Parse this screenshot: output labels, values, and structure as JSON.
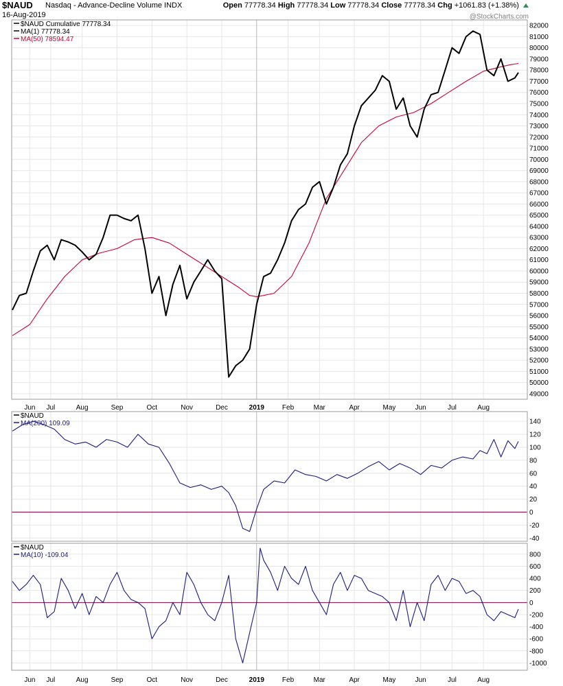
{
  "header": {
    "symbol": "$NAUD",
    "subtitle": "Nasdaq - Advance-Decline Volume INDX",
    "date": "16-Aug-2019",
    "open_label": "Open",
    "open": "77778.34",
    "high_label": "High",
    "high": "77778.34",
    "low_label": "Low",
    "low": "77778.34",
    "close_label": "Close",
    "close": "77778.34",
    "chg_label": "Chg",
    "chg": "+1061.83 (+1.38%)",
    "chg_icon": "up-triangle-icon",
    "watermark": "@StockCharts.com"
  },
  "colors": {
    "price": "#000000",
    "ma50": "#cc0033",
    "osc": "#1a1a80",
    "zero": "#800040",
    "grid": "#e6e6e6",
    "frame": "#999999"
  },
  "x_axis": {
    "month_labels": [
      "Jun",
      "Jul",
      "Aug",
      "Sep",
      "Oct",
      "Nov",
      "Dec",
      "2019",
      "Feb",
      "Mar",
      "Apr",
      "May",
      "Jun",
      "Jul",
      "Aug"
    ],
    "month_t": [
      0.05,
      0.11,
      0.2,
      0.3,
      0.4,
      0.5,
      0.6,
      0.7,
      0.79,
      0.88,
      0.98,
      1.08,
      1.17,
      1.26,
      1.35
    ]
  },
  "chart_data": [
    {
      "type": "line",
      "panel": "price",
      "legend_items": [
        {
          "text": "$NAUD Cumulative 77778.34",
          "color": "#000000"
        },
        {
          "text": "MA(1) 77778.34",
          "color": "#000000"
        },
        {
          "text": "MA(50) 78594.47",
          "color": "#cc0033"
        }
      ],
      "ylim": [
        48500,
        82500
      ],
      "yticks": [
        49000,
        50000,
        51000,
        52000,
        53000,
        54000,
        55000,
        56000,
        57000,
        58000,
        59000,
        60000,
        61000,
        62000,
        63000,
        64000,
        65000,
        66000,
        67000,
        68000,
        69000,
        70000,
        71000,
        72000,
        73000,
        74000,
        75000,
        76000,
        77000,
        78000,
        79000,
        80000,
        81000,
        82000
      ],
      "x_unit": "years since 2018-05-21",
      "series": [
        {
          "name": "$NAUD Cumulative",
          "color": "#000000",
          "x": [
            0.0,
            0.02,
            0.04,
            0.06,
            0.08,
            0.1,
            0.12,
            0.14,
            0.16,
            0.18,
            0.2,
            0.22,
            0.24,
            0.26,
            0.28,
            0.3,
            0.32,
            0.34,
            0.36,
            0.38,
            0.4,
            0.42,
            0.44,
            0.46,
            0.48,
            0.5,
            0.52,
            0.54,
            0.56,
            0.58,
            0.6,
            0.62,
            0.64,
            0.66,
            0.68,
            0.7,
            0.72,
            0.74,
            0.76,
            0.78,
            0.8,
            0.82,
            0.84,
            0.86,
            0.88,
            0.9,
            0.92,
            0.94,
            0.96,
            0.98,
            1.0,
            1.02,
            1.04,
            1.06,
            1.08,
            1.1,
            1.12,
            1.14,
            1.16,
            1.18,
            1.2,
            1.22,
            1.24,
            1.26,
            1.28,
            1.3,
            1.32,
            1.34,
            1.36,
            1.38,
            1.4,
            1.42,
            1.44,
            1.45
          ],
          "values": [
            56500,
            57800,
            58000,
            60000,
            61800,
            62300,
            61000,
            62800,
            62600,
            62300,
            61700,
            61000,
            61500,
            63000,
            65000,
            65000,
            64700,
            64500,
            65000,
            62000,
            58000,
            59500,
            56000,
            58800,
            60500,
            57500,
            59000,
            60000,
            61000,
            60000,
            59300,
            50500,
            51500,
            52000,
            53000,
            57000,
            59500,
            59800,
            61000,
            62500,
            64500,
            65500,
            66000,
            67500,
            68000,
            66000,
            67500,
            69500,
            70500,
            73000,
            74800,
            75500,
            76200,
            77500,
            77000,
            74500,
            75500,
            73000,
            72000,
            74500,
            75800,
            76000,
            78000,
            80000,
            79500,
            81000,
            81500,
            81200,
            78000,
            77500,
            79000,
            77000,
            77300,
            77778.34
          ]
        },
        {
          "name": "MA(50)",
          "color": "#cc0033",
          "x": [
            0.0,
            0.05,
            0.1,
            0.15,
            0.2,
            0.25,
            0.3,
            0.35,
            0.4,
            0.45,
            0.5,
            0.55,
            0.6,
            0.65,
            0.68,
            0.7,
            0.72,
            0.75,
            0.8,
            0.85,
            0.9,
            0.95,
            1.0,
            1.05,
            1.1,
            1.15,
            1.2,
            1.25,
            1.3,
            1.35,
            1.4,
            1.43,
            1.45
          ],
          "values": [
            54200,
            55200,
            57500,
            59500,
            61000,
            61600,
            62000,
            62800,
            63000,
            62500,
            61500,
            60500,
            59500,
            58500,
            57800,
            57700,
            57800,
            58000,
            59500,
            62500,
            66500,
            69000,
            71500,
            73000,
            73800,
            74200,
            75000,
            76000,
            77000,
            77900,
            78300,
            78500,
            78594.47
          ]
        }
      ]
    },
    {
      "type": "line",
      "panel": "ma200",
      "legend_items": [
        {
          "text": "$NAUD",
          "color": "#000000"
        },
        {
          "text": "MA(200) 109.09",
          "color": "#1a1a80"
        }
      ],
      "ylim": [
        -45,
        155
      ],
      "yticks": [
        -40,
        -20,
        0,
        20,
        40,
        60,
        80,
        100,
        120,
        140
      ],
      "zero_line": 0,
      "x_unit": "years since 2018-05-21",
      "series": [
        {
          "name": "MA(200)",
          "color": "#1a1a80",
          "x": [
            0.0,
            0.03,
            0.06,
            0.09,
            0.12,
            0.15,
            0.18,
            0.21,
            0.24,
            0.27,
            0.3,
            0.33,
            0.36,
            0.39,
            0.42,
            0.45,
            0.48,
            0.51,
            0.54,
            0.57,
            0.6,
            0.62,
            0.64,
            0.66,
            0.68,
            0.7,
            0.72,
            0.75,
            0.78,
            0.81,
            0.84,
            0.87,
            0.9,
            0.93,
            0.96,
            0.99,
            1.02,
            1.05,
            1.08,
            1.11,
            1.14,
            1.17,
            1.2,
            1.23,
            1.26,
            1.29,
            1.32,
            1.34,
            1.36,
            1.38,
            1.4,
            1.42,
            1.44,
            1.45
          ],
          "values": [
            125,
            135,
            140,
            135,
            128,
            112,
            105,
            108,
            100,
            112,
            108,
            100,
            120,
            105,
            100,
            75,
            45,
            38,
            42,
            35,
            40,
            30,
            10,
            -25,
            -30,
            5,
            35,
            48,
            45,
            65,
            58,
            55,
            48,
            58,
            52,
            60,
            70,
            78,
            65,
            75,
            68,
            58,
            72,
            68,
            80,
            85,
            82,
            95,
            90,
            112,
            85,
            110,
            98,
            109.09
          ]
        }
      ]
    },
    {
      "type": "line",
      "panel": "ma10",
      "legend_items": [
        {
          "text": "$NAUD",
          "color": "#000000"
        },
        {
          "text": "MA(10) -109.04",
          "color": "#1a1a80"
        }
      ],
      "ylim": [
        -1120,
        980
      ],
      "yticks": [
        -1000,
        -800,
        -600,
        -400,
        -200,
        0,
        200,
        400,
        600,
        800
      ],
      "zero_line": 0,
      "x_unit": "years since 2018-05-21",
      "series": [
        {
          "name": "MA(10)",
          "color": "#1a1a80",
          "x": [
            0.0,
            0.02,
            0.04,
            0.06,
            0.08,
            0.1,
            0.12,
            0.14,
            0.16,
            0.18,
            0.2,
            0.22,
            0.24,
            0.26,
            0.28,
            0.3,
            0.32,
            0.34,
            0.36,
            0.38,
            0.4,
            0.42,
            0.44,
            0.46,
            0.48,
            0.5,
            0.52,
            0.54,
            0.56,
            0.58,
            0.6,
            0.62,
            0.64,
            0.66,
            0.68,
            0.7,
            0.71,
            0.72,
            0.74,
            0.76,
            0.78,
            0.8,
            0.82,
            0.84,
            0.86,
            0.88,
            0.9,
            0.92,
            0.94,
            0.96,
            0.98,
            1.0,
            1.02,
            1.04,
            1.06,
            1.08,
            1.1,
            1.12,
            1.14,
            1.16,
            1.18,
            1.2,
            1.22,
            1.24,
            1.26,
            1.28,
            1.3,
            1.32,
            1.34,
            1.36,
            1.38,
            1.4,
            1.42,
            1.44,
            1.45
          ],
          "values": [
            350,
            200,
            300,
            450,
            300,
            -250,
            -150,
            400,
            200,
            -100,
            150,
            -200,
            100,
            0,
            300,
            500,
            200,
            50,
            0,
            -100,
            -600,
            -400,
            -300,
            0,
            -200,
            500,
            300,
            0,
            -200,
            -300,
            0,
            450,
            -600,
            -1000,
            -500,
            0,
            900,
            700,
            500,
            200,
            600,
            400,
            300,
            600,
            200,
            0,
            -200,
            300,
            500,
            200,
            450,
            400,
            200,
            150,
            100,
            0,
            -300,
            200,
            -400,
            0,
            -300,
            300,
            450,
            200,
            400,
            350,
            150,
            200,
            100,
            -200,
            -300,
            -150,
            -200,
            -250,
            -109.04
          ]
        }
      ]
    }
  ]
}
